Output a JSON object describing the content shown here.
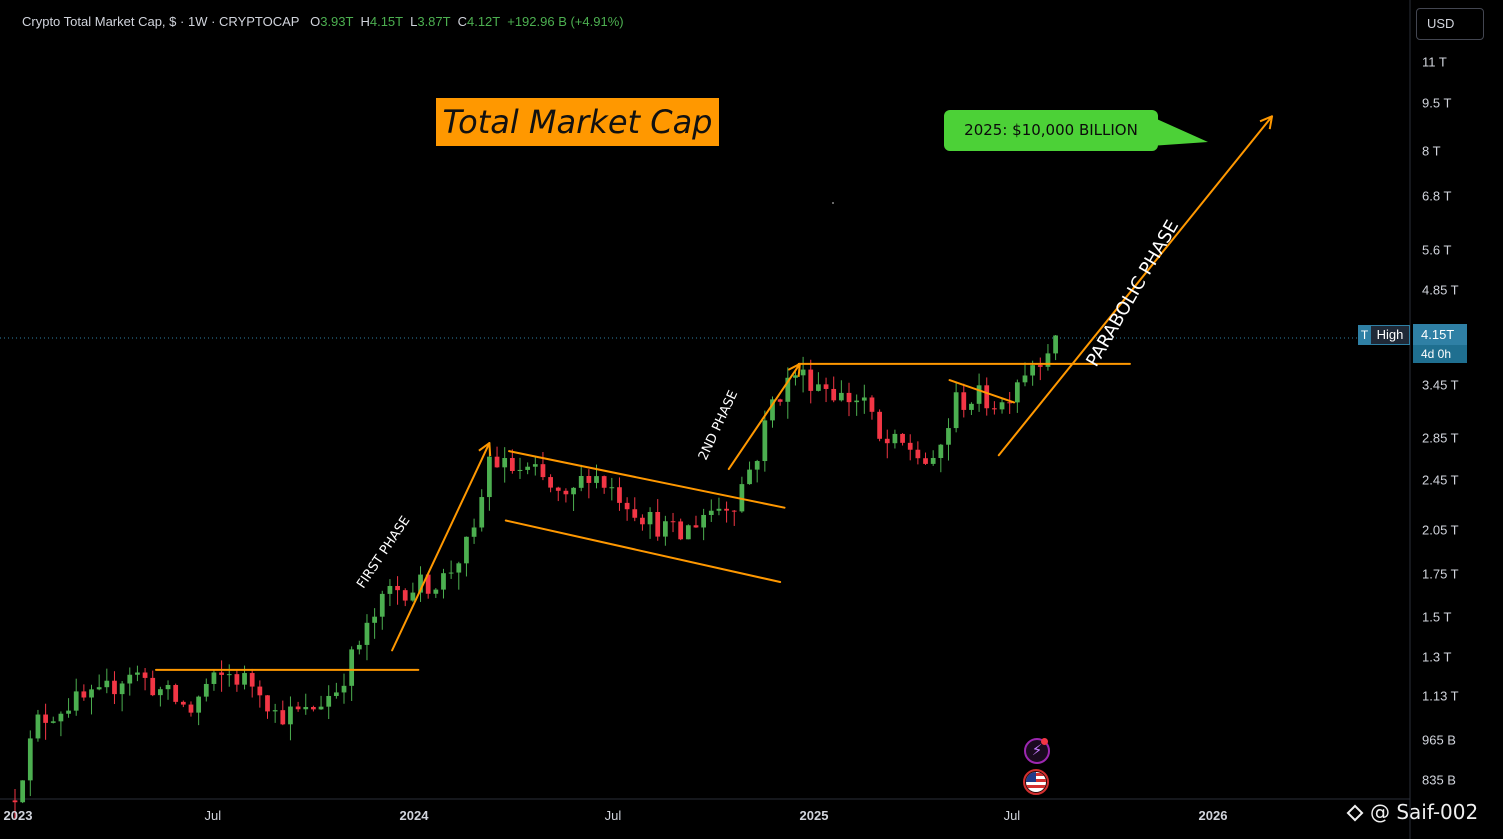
{
  "header": {
    "symbol": "Crypto Total Market Cap, $",
    "interval": "1W",
    "exchange": "CRYPTOCAP",
    "open_key": "O",
    "open": "3.93T",
    "high_key": "H",
    "high": "4.15T",
    "low_key": "L",
    "low": "3.87T",
    "close_key": "C",
    "close": "4.12T",
    "change": "+192.96 B (+4.91%)"
  },
  "currency_button": "USD",
  "annotation_title": "Total Market Cap",
  "target_callout": "2025: $10,000 BILLION",
  "phase_labels": {
    "first": "FIRST PHASE",
    "second": "2ND PHASE",
    "parabolic": "PARABOLIC PHASE"
  },
  "price_marker": {
    "flag": "T",
    "label": "High",
    "price": "4.15T",
    "countdown": "4d 0h"
  },
  "watermark": "@ Saif-002",
  "colors": {
    "up": "#4caf50",
    "down": "#f23645",
    "trendline": "#ff9800",
    "callout": "#4cd137",
    "price_line": "#2f80a5"
  },
  "icons": [
    "lightning-event-icon",
    "us-flag-event-icon",
    "binance-square-icon"
  ],
  "chart_data": {
    "type": "candlestick",
    "title": "Crypto Total Market Cap, $",
    "scale": "log",
    "y_unit": "USD (trillions)",
    "ylim": [
      0.77,
      12.5
    ],
    "y_ticks": [
      {
        "label": "11 T",
        "value": 11
      },
      {
        "label": "9.5 T",
        "value": 9.5
      },
      {
        "label": "8 T",
        "value": 8
      },
      {
        "label": "6.8 T",
        "value": 6.8
      },
      {
        "label": "5.6 T",
        "value": 5.6
      },
      {
        "label": "4.85 T",
        "value": 4.85
      },
      {
        "label": "3.45 T",
        "value": 3.45
      },
      {
        "label": "2.85 T",
        "value": 2.85
      },
      {
        "label": "2.45 T",
        "value": 2.45
      },
      {
        "label": "2.05 T",
        "value": 2.05
      },
      {
        "label": "1.75 T",
        "value": 1.75
      },
      {
        "label": "1.5 T",
        "value": 1.5
      },
      {
        "label": "1.3 T",
        "value": 1.3
      },
      {
        "label": "1.13 T",
        "value": 1.13
      },
      {
        "label": "965 B",
        "value": 0.965
      },
      {
        "label": "835 B",
        "value": 0.835
      }
    ],
    "x_range": [
      "2023-01-01",
      "2026-03-15"
    ],
    "x_ticks": [
      {
        "label": "2023",
        "date": "2023-01-01",
        "major": true
      },
      {
        "label": "Jul",
        "date": "2023-07-01",
        "major": false
      },
      {
        "label": "2024",
        "date": "2024-01-01",
        "major": true
      },
      {
        "label": "Jul",
        "date": "2024-07-01",
        "major": false
      },
      {
        "label": "2025",
        "date": "2025-01-01",
        "major": true
      },
      {
        "label": "Jul",
        "date": "2025-07-01",
        "major": false
      },
      {
        "label": "2026",
        "date": "2026-01-01",
        "major": true
      }
    ],
    "candle_start": "2023-01-01",
    "candle_interval": "1W",
    "close_path": [
      [
        "2023-01-01",
        0.8
      ],
      [
        "2023-01-22",
        1.03
      ],
      [
        "2023-02-19",
        1.1
      ],
      [
        "2023-03-19",
        1.12
      ],
      [
        "2023-04-16",
        1.24
      ],
      [
        "2023-05-14",
        1.15
      ],
      [
        "2023-06-11",
        1.07
      ],
      [
        "2023-06-25",
        1.17
      ],
      [
        "2023-07-16",
        1.22
      ],
      [
        "2023-08-13",
        1.17
      ],
      [
        "2023-08-27",
        1.06
      ],
      [
        "2023-09-24",
        1.06
      ],
      [
        "2023-10-22",
        1.16
      ],
      [
        "2023-11-12",
        1.36
      ],
      [
        "2023-12-10",
        1.65
      ],
      [
        "2024-01-07",
        1.68
      ],
      [
        "2024-01-28",
        1.72
      ],
      [
        "2024-02-25",
        2.0
      ],
      [
        "2024-03-10",
        2.65
      ],
      [
        "2024-03-24",
        2.57
      ],
      [
        "2024-04-21",
        2.5
      ],
      [
        "2024-05-19",
        2.25
      ],
      [
        "2024-06-09",
        2.54
      ],
      [
        "2024-07-07",
        2.33
      ],
      [
        "2024-08-04",
        2.12
      ],
      [
        "2024-09-01",
        2.0
      ],
      [
        "2024-09-22",
        2.18
      ],
      [
        "2024-10-20",
        2.28
      ],
      [
        "2024-11-10",
        2.7
      ],
      [
        "2024-11-24",
        3.25
      ],
      [
        "2024-12-15",
        3.6
      ],
      [
        "2025-01-12",
        3.45
      ],
      [
        "2025-01-26",
        3.3
      ],
      [
        "2025-02-16",
        3.28
      ],
      [
        "2025-03-02",
        2.8
      ],
      [
        "2025-03-30",
        2.75
      ],
      [
        "2025-04-20",
        2.55
      ],
      [
        "2025-05-11",
        3.25
      ],
      [
        "2025-06-01",
        3.3
      ],
      [
        "2025-06-22",
        3.22
      ],
      [
        "2025-07-06",
        3.55
      ],
      [
        "2025-07-27",
        3.85
      ],
      [
        "2025-08-10",
        4.12
      ]
    ],
    "annotations": {
      "lines": [
        {
          "name": "resistance-2023",
          "points": [
            [
              "2023-05-10",
              1.24
            ],
            [
              "2024-01-05",
              1.24
            ]
          ]
        },
        {
          "name": "channel-upper",
          "points": [
            [
              "2024-03-28",
              2.72
            ],
            [
              "2024-12-05",
              2.22
            ]
          ]
        },
        {
          "name": "channel-lower",
          "points": [
            [
              "2024-03-25",
              2.12
            ],
            [
              "2024-12-01",
              1.7
            ]
          ]
        },
        {
          "name": "resistance-2025",
          "points": [
            [
              "2024-12-18",
              3.72
            ],
            [
              "2025-10-17",
              3.72
            ]
          ]
        },
        {
          "name": "wedge-top",
          "points": [
            [
              "2025-05-05",
              3.51
            ],
            [
              "2025-07-03",
              3.24
            ]
          ]
        }
      ],
      "arrows": [
        {
          "name": "first-phase-arrow",
          "points": [
            [
              "2023-12-12",
              1.33
            ],
            [
              "2024-03-10",
              2.8
            ]
          ]
        },
        {
          "name": "second-phase-arrow",
          "points": [
            [
              "2024-10-15",
              2.55
            ],
            [
              "2024-12-19",
              3.72
            ]
          ]
        },
        {
          "name": "parabolic-arrow",
          "points": [
            [
              "2025-06-19",
              2.68
            ],
            [
              "2026-02-24",
              9.05
            ]
          ]
        }
      ]
    }
  }
}
